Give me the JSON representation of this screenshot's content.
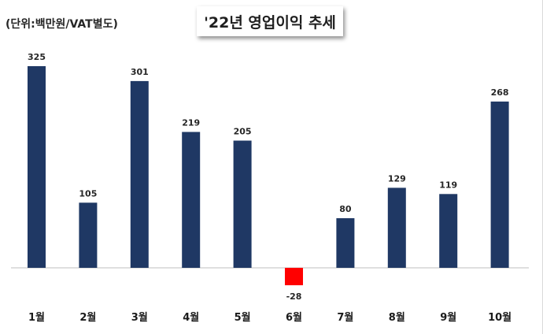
{
  "unit_label": "(단위:백만원/VAT별도)",
  "chart_data": {
    "type": "bar",
    "title": "'22년 영업이익 추세",
    "categories": [
      "1월",
      "2월",
      "3월",
      "4월",
      "5월",
      "6월",
      "7월",
      "8월",
      "9월",
      "10월"
    ],
    "values": [
      325,
      105,
      301,
      219,
      205,
      -28,
      80,
      129,
      119,
      268
    ],
    "xlabel": "",
    "ylabel": "",
    "ylim": [
      -28,
      325
    ],
    "grid": false,
    "legend": "none",
    "colors": {
      "positive": "#1f3864",
      "negative": "#ff0000",
      "baseline": "#bfbfbf"
    }
  }
}
